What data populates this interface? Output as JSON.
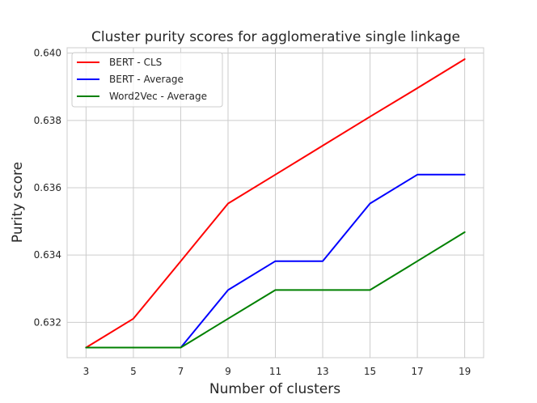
{
  "chart_data": {
    "type": "line",
    "title": "Cluster purity scores for agglomerative single linkage",
    "xlabel": "Number of clusters",
    "ylabel": "Purity score",
    "x": [
      3,
      5,
      7,
      9,
      11,
      13,
      15,
      17,
      19
    ],
    "xticks": [
      "3",
      "5",
      "7",
      "9",
      "11",
      "13",
      "15",
      "17",
      "19"
    ],
    "yticks": [
      "0.632",
      "0.634",
      "0.636",
      "0.638",
      "0.640"
    ],
    "ytick_values": [
      0.632,
      0.634,
      0.636,
      0.638,
      0.64
    ],
    "xlim": [
      2.2,
      19.8
    ],
    "ylim": [
      0.63095,
      0.64016
    ],
    "grid": true,
    "legend_position": "top-left",
    "series": [
      {
        "name": "BERT - CLS",
        "color": "#ff0000",
        "values": [
          0.63125,
          0.63211,
          0.63382,
          0.63553,
          0.63639,
          0.63725,
          0.63811,
          0.63896,
          0.63982
        ]
      },
      {
        "name": "BERT - Average",
        "color": "#0000ff",
        "values": [
          0.63125,
          0.63125,
          0.63125,
          0.63296,
          0.63382,
          0.63382,
          0.63553,
          0.63639,
          0.63639
        ]
      },
      {
        "name": "Word2Vec - Average",
        "color": "#008000",
        "values": [
          0.63125,
          0.63125,
          0.63125,
          0.63211,
          0.63296,
          0.63296,
          0.63296,
          0.63382,
          0.63468
        ]
      }
    ]
  }
}
